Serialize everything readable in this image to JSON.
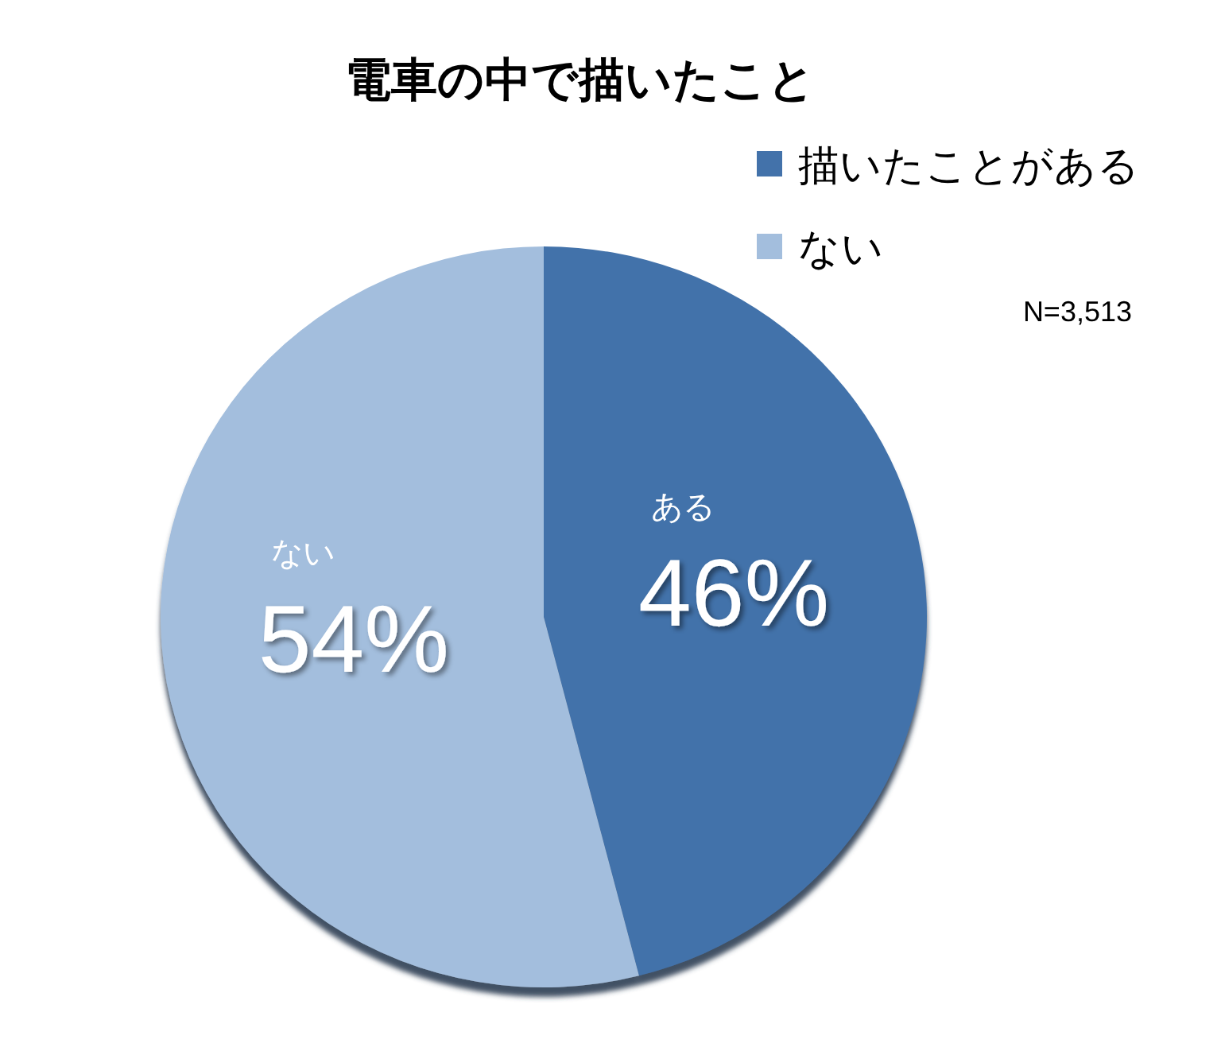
{
  "chart_data": {
    "type": "pie",
    "title": "電車の中で描いたこと",
    "categories": [
      "描いたことがある",
      "ない"
    ],
    "values": [
      46,
      54
    ],
    "colors": [
      "#4372aa",
      "#a3bedd"
    ],
    "value_labels": [
      "46%",
      "54%"
    ],
    "legend": "top right",
    "annotations": [
      {
        "text": "ある",
        "x": "描いたことがある"
      },
      {
        "text": "ない",
        "x": "ない"
      },
      "N=3,513"
    ]
  }
}
